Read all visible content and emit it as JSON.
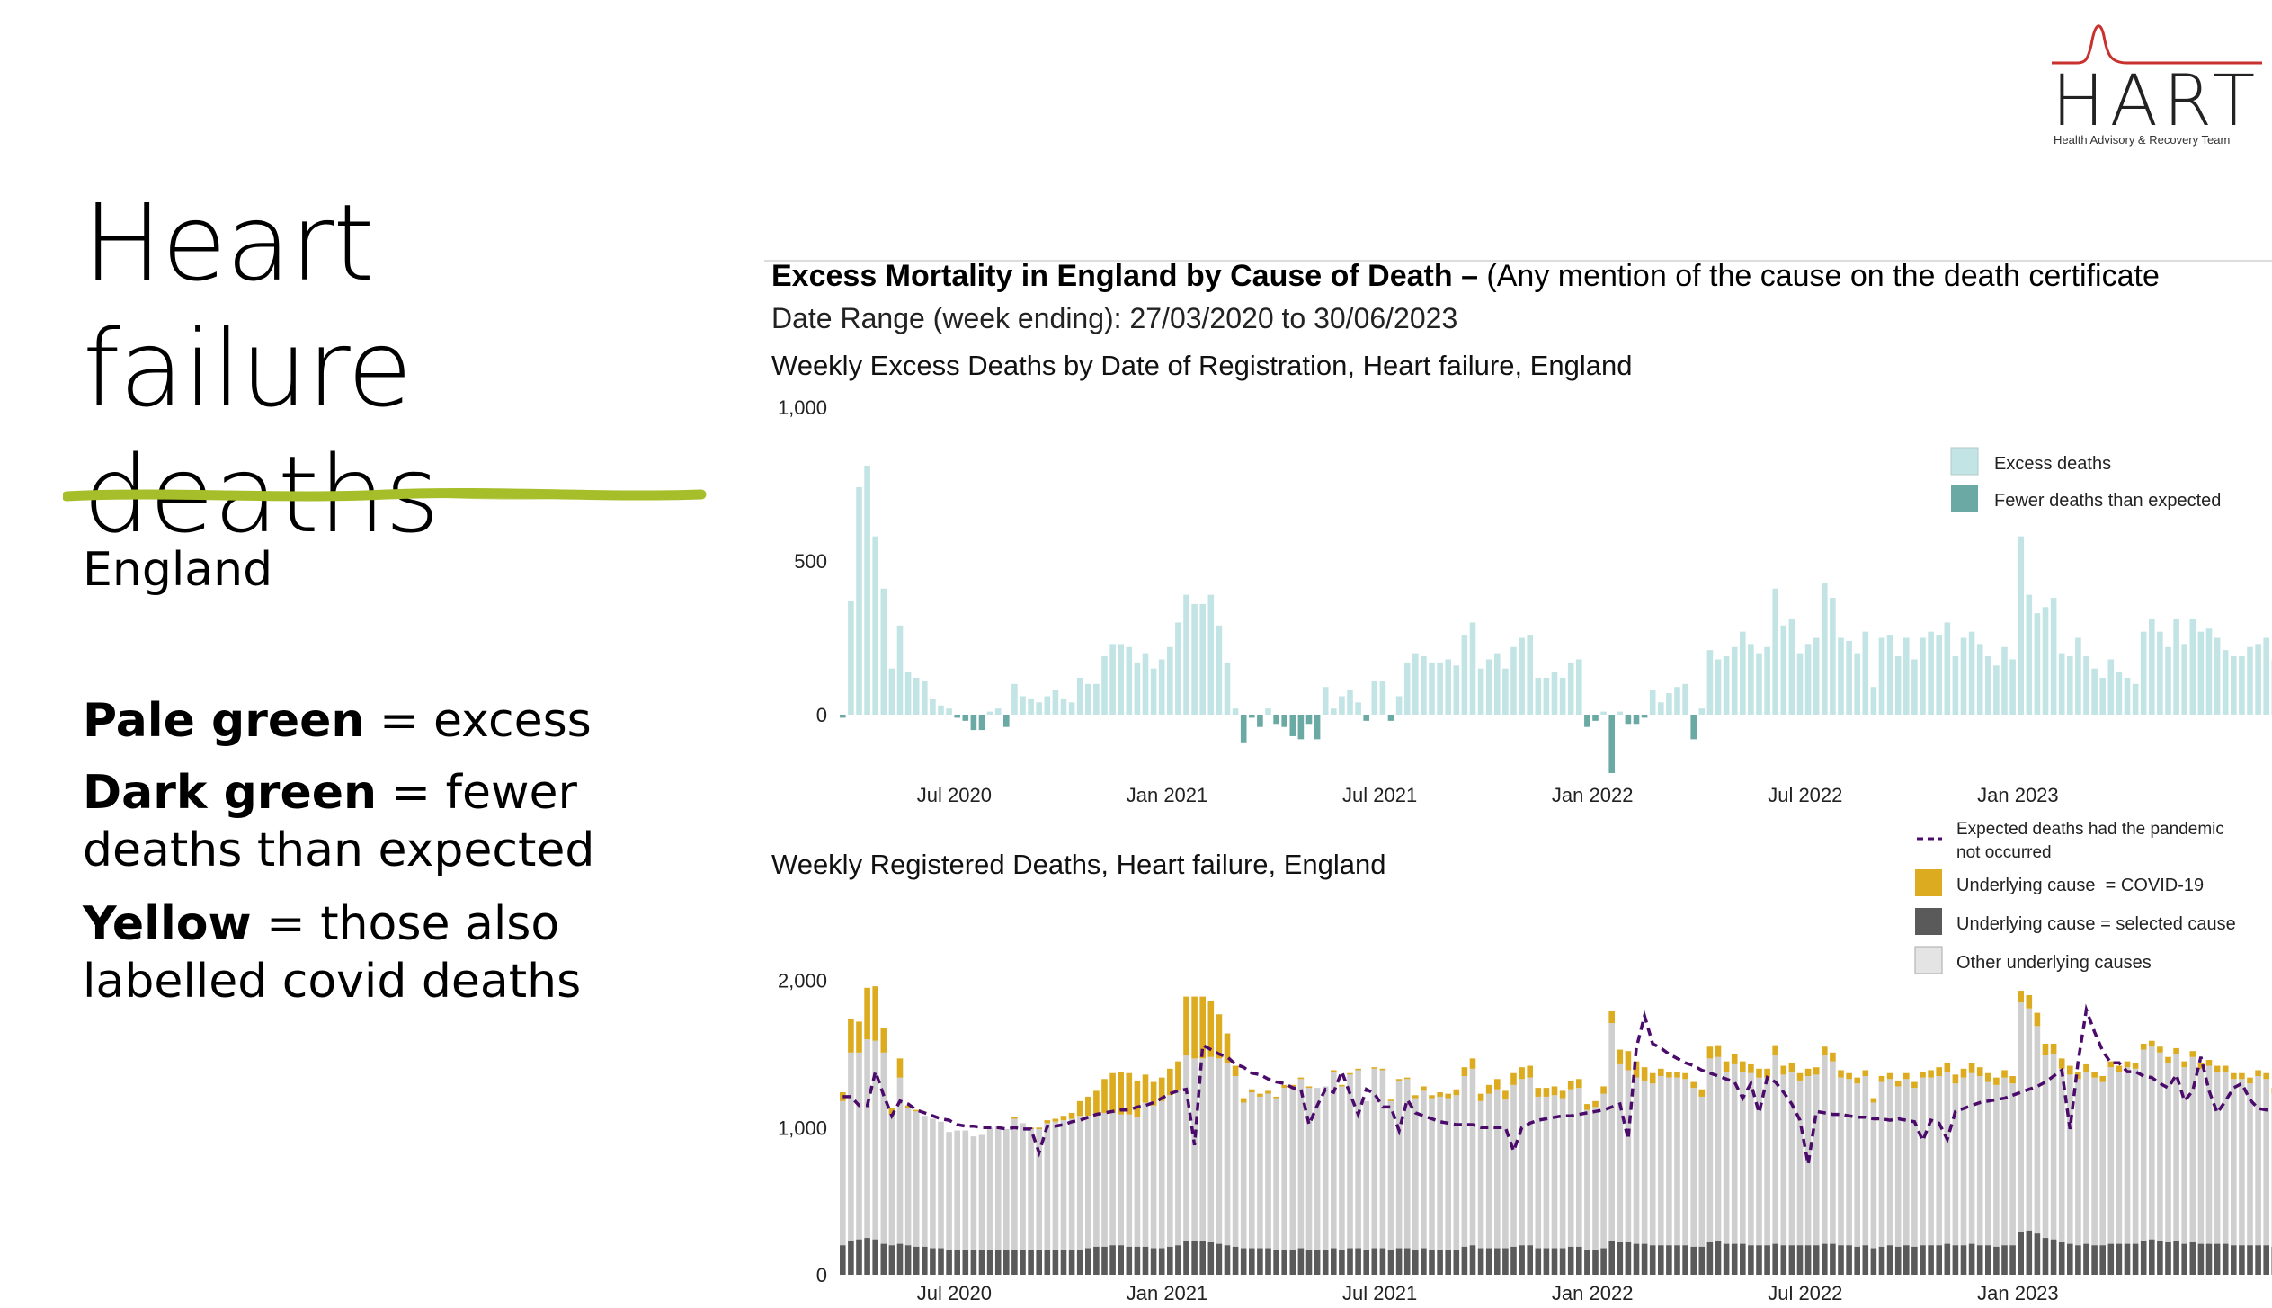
{
  "slide": {
    "title": "Heart failure deaths",
    "region": "England",
    "legend_notes": [
      {
        "bold": "Pale green",
        "text": " = excess"
      },
      {
        "bold": "Dark green",
        "text": " = fewer deaths than expected"
      },
      {
        "bold": "Yellow",
        "text": " = those also labelled covid deaths"
      }
    ]
  },
  "logo": {
    "name": "HART",
    "subtitle": "Health Advisory & Recovery Team"
  },
  "colors": {
    "accent_underline": "#a6be2a",
    "excess": "#c3e4e4",
    "fewer": "#6aa9a4",
    "covid": "#dcab1f",
    "selected": "#5a5a5a",
    "other": "#cfcfcf",
    "expected": "#4b0b6b",
    "logo_red": "#c8312e"
  },
  "report": {
    "heading_bold": "Excess Mortality in England by Cause of Death –",
    "heading_rest": " (Any mention of the cause on the death certificate",
    "date_range": "Date Range (week ending): 27/03/2020 to 30/06/2023"
  },
  "chart_data": [
    {
      "type": "bar",
      "title": "Weekly Excess Deaths by Date of Registration, Heart failure, England",
      "ylim": [
        -400,
        1000
      ],
      "yticks": [
        {
          "v": 1000,
          "label": "1,000"
        },
        {
          "v": 500,
          "label": "500"
        },
        {
          "v": 0,
          "label": "0"
        }
      ],
      "xticks": [
        {
          "week": 14,
          "label": "Jul 2020"
        },
        {
          "week": 40,
          "label": "Jan 2021"
        },
        {
          "week": 66,
          "label": "Jul 2021"
        },
        {
          "week": 92,
          "label": "Jan 2022"
        },
        {
          "week": 118,
          "label": "Jul 2022"
        },
        {
          "week": 144,
          "label": "Jan 2023"
        }
      ],
      "legend": [
        "Excess deaths",
        "Fewer deaths than expected"
      ],
      "values": [
        -10,
        370,
        740,
        810,
        580,
        410,
        150,
        290,
        140,
        120,
        110,
        50,
        30,
        20,
        -10,
        -20,
        -50,
        -50,
        10,
        20,
        -40,
        100,
        60,
        50,
        40,
        60,
        80,
        50,
        40,
        120,
        100,
        100,
        190,
        230,
        230,
        220,
        170,
        200,
        150,
        180,
        220,
        300,
        390,
        360,
        360,
        390,
        290,
        170,
        20,
        -90,
        -10,
        -40,
        20,
        -30,
        -40,
        -70,
        -80,
        -30,
        -80,
        90,
        20,
        60,
        80,
        40,
        -20,
        110,
        110,
        -20,
        60,
        170,
        200,
        190,
        170,
        170,
        180,
        160,
        260,
        300,
        150,
        180,
        200,
        150,
        220,
        250,
        260,
        120,
        120,
        140,
        120,
        170,
        180,
        -40,
        -20,
        10,
        -190,
        10,
        -30,
        -30,
        -10,
        80,
        40,
        70,
        90,
        100,
        -80,
        20,
        210,
        180,
        190,
        220,
        270,
        230,
        200,
        220,
        410,
        290,
        310,
        200,
        230,
        250,
        430,
        380,
        250,
        240,
        200,
        270,
        90,
        250,
        260,
        190,
        250,
        180,
        250,
        270,
        260,
        300,
        190,
        250,
        270,
        230,
        190,
        160,
        220,
        180,
        580,
        390,
        330,
        350,
        380,
        200,
        190,
        250,
        190,
        150,
        120,
        180,
        140,
        120,
        100,
        270,
        310,
        270,
        220,
        310,
        230,
        310,
        270,
        280,
        250,
        210,
        190,
        190,
        220,
        230,
        250,
        180
      ]
    },
    {
      "type": "bar",
      "title": "Weekly Registered Deaths, Heart failure, England",
      "ylim": [
        0,
        2200
      ],
      "yticks": [
        {
          "v": 2000,
          "label": "2,000"
        },
        {
          "v": 1000,
          "label": "1,000"
        },
        {
          "v": 0,
          "label": "0"
        }
      ],
      "xticks": [
        {
          "week": 14,
          "label": "Jul 2020"
        },
        {
          "week": 40,
          "label": "Jan 2021"
        },
        {
          "week": 66,
          "label": "Jul 2021"
        },
        {
          "week": 92,
          "label": "Jan 2022"
        },
        {
          "week": 118,
          "label": "Jul 2022"
        },
        {
          "week": 144,
          "label": "Jan 2023"
        }
      ],
      "legend": [
        "Expected deaths had the pandemic not occurred",
        "Underlying cause  = COVID-19",
        "Underlying cause = selected cause",
        "Other underlying causes"
      ],
      "registered_totals": [
        1240,
        1740,
        1720,
        1950,
        1960,
        1680,
        1130,
        1470,
        1150,
        1120,
        1080,
        1060,
        1040,
        970,
        980,
        980,
        940,
        950,
        1000,
        1010,
        990,
        1070,
        1030,
        1000,
        1000,
        1050,
        1060,
        1080,
        1100,
        1180,
        1210,
        1250,
        1330,
        1370,
        1380,
        1370,
        1320,
        1360,
        1310,
        1340,
        1400,
        1450,
        1890,
        1890,
        1890,
        1860,
        1770,
        1640,
        1420,
        1200,
        1260,
        1230,
        1250,
        1210,
        1290,
        1290,
        1340,
        1280,
        1270,
        1280,
        1390,
        1290,
        1370,
        1400,
        1180,
        1410,
        1400,
        1190,
        1330,
        1340,
        1220,
        1280,
        1220,
        1240,
        1230,
        1260,
        1410,
        1470,
        1230,
        1290,
        1330,
        1250,
        1370,
        1410,
        1420,
        1270,
        1270,
        1280,
        1250,
        1320,
        1330,
        1160,
        1180,
        1280,
        1790,
        1530,
        1520,
        1450,
        1410,
        1370,
        1400,
        1380,
        1380,
        1370,
        1310,
        1260,
        1550,
        1560,
        1450,
        1500,
        1450,
        1430,
        1400,
        1400,
        1560,
        1420,
        1440,
        1370,
        1400,
        1410,
        1550,
        1510,
        1390,
        1370,
        1340,
        1390,
        1200,
        1350,
        1370,
        1320,
        1370,
        1310,
        1380,
        1390,
        1410,
        1440,
        1360,
        1400,
        1440,
        1410,
        1370,
        1340,
        1390,
        1350,
        1930,
        1900,
        1780,
        1570,
        1570,
        1470,
        1420,
        1380,
        1430,
        1380,
        1350,
        1450,
        1420,
        1450,
        1440,
        1570,
        1590,
        1550,
        1480,
        1540,
        1450,
        1520,
        1440,
        1460,
        1420,
        1420,
        1370,
        1370,
        1340,
        1390,
        1370,
        1270
      ],
      "covid": [
        60,
        230,
        210,
        350,
        370,
        170,
        40,
        130,
        20,
        10,
        0,
        0,
        0,
        0,
        0,
        0,
        0,
        0,
        0,
        0,
        0,
        10,
        0,
        10,
        10,
        20,
        20,
        30,
        40,
        100,
        130,
        170,
        230,
        270,
        290,
        280,
        250,
        190,
        160,
        160,
        180,
        200,
        400,
        420,
        420,
        380,
        300,
        200,
        70,
        30,
        20,
        20,
        20,
        10,
        20,
        10,
        10,
        10,
        0,
        0,
        10,
        10,
        10,
        10,
        0,
        10,
        10,
        10,
        10,
        10,
        20,
        30,
        20,
        30,
        30,
        40,
        60,
        70,
        50,
        60,
        70,
        60,
        80,
        80,
        80,
        60,
        60,
        60,
        50,
        60,
        60,
        40,
        40,
        50,
        80,
        100,
        130,
        110,
        90,
        70,
        50,
        40,
        40,
        40,
        40,
        50,
        80,
        80,
        70,
        70,
        70,
        60,
        60,
        60,
        70,
        60,
        60,
        50,
        50,
        50,
        60,
        60,
        50,
        40,
        40,
        40,
        30,
        40,
        40,
        40,
        40,
        40,
        40,
        50,
        60,
        60,
        60,
        60,
        70,
        60,
        60,
        50,
        50,
        50,
        80,
        90,
        90,
        80,
        70,
        70,
        60,
        50,
        50,
        40,
        40,
        40,
        40,
        40,
        40,
        40,
        40,
        40,
        40,
        40,
        40,
        40,
        40,
        40,
        40,
        40,
        40,
        40,
        40,
        40,
        40,
        40
      ],
      "selected_cause": [
        200,
        230,
        240,
        250,
        240,
        210,
        200,
        210,
        200,
        190,
        190,
        180,
        180,
        170,
        170,
        170,
        170,
        170,
        170,
        170,
        170,
        170,
        170,
        170,
        170,
        170,
        170,
        170,
        170,
        170,
        180,
        190,
        190,
        200,
        200,
        190,
        190,
        190,
        180,
        180,
        190,
        200,
        230,
        230,
        230,
        220,
        210,
        200,
        190,
        180,
        180,
        180,
        180,
        170,
        170,
        170,
        180,
        170,
        170,
        170,
        180,
        170,
        180,
        180,
        170,
        180,
        180,
        170,
        180,
        180,
        170,
        180,
        170,
        170,
        170,
        170,
        190,
        200,
        180,
        180,
        180,
        180,
        190,
        200,
        200,
        180,
        180,
        180,
        180,
        190,
        190,
        170,
        170,
        180,
        230,
        220,
        220,
        210,
        210,
        200,
        200,
        200,
        200,
        200,
        190,
        190,
        220,
        230,
        210,
        210,
        210,
        200,
        200,
        200,
        210,
        200,
        200,
        200,
        200,
        200,
        210,
        210,
        200,
        200,
        190,
        200,
        180,
        190,
        200,
        190,
        200,
        190,
        200,
        200,
        200,
        210,
        200,
        200,
        210,
        200,
        200,
        190,
        200,
        200,
        290,
        300,
        280,
        250,
        240,
        220,
        210,
        200,
        210,
        200,
        200,
        210,
        210,
        210,
        210,
        230,
        240,
        230,
        220,
        230,
        210,
        220,
        210,
        210,
        210,
        210,
        200,
        200,
        200,
        200,
        200,
        190
      ],
      "expected": [
        1210,
        1210,
        1150,
        1150,
        1380,
        1220,
        1080,
        1180,
        1160,
        1120,
        1100,
        1080,
        1060,
        1050,
        1020,
        1010,
        1010,
        1000,
        1000,
        1000,
        990,
        1000,
        990,
        990,
        830,
        1010,
        1010,
        1020,
        1040,
        1050,
        1070,
        1090,
        1100,
        1110,
        1120,
        1120,
        1140,
        1150,
        1170,
        1200,
        1230,
        1250,
        1260,
        880,
        1560,
        1530,
        1500,
        1480,
        1430,
        1410,
        1370,
        1360,
        1330,
        1310,
        1300,
        1270,
        1260,
        1020,
        1150,
        1260,
        1240,
        1380,
        1230,
        1090,
        1260,
        1230,
        1140,
        1140,
        980,
        1190,
        1100,
        1080,
        1060,
        1040,
        1030,
        1020,
        1020,
        1020,
        1000,
        1000,
        1000,
        1000,
        840,
        1000,
        1030,
        1050,
        1060,
        1070,
        1080,
        1080,
        1090,
        1100,
        1110,
        1120,
        1140,
        1160,
        920,
        1540,
        1760,
        1570,
        1540,
        1500,
        1470,
        1440,
        1420,
        1390,
        1370,
        1350,
        1330,
        1310,
        1200,
        1300,
        1100,
        1340,
        1310,
        1240,
        1160,
        1050,
        750,
        1110,
        1100,
        1090,
        1090,
        1080,
        1070,
        1070,
        1060,
        1060,
        1050,
        1060,
        1050,
        1040,
        910,
        1050,
        1030,
        920,
        1110,
        1130,
        1150,
        1170,
        1180,
        1190,
        1200,
        1220,
        1240,
        1260,
        1280,
        1310,
        1350,
        1390,
        990,
        1450,
        1800,
        1650,
        1520,
        1440,
        1440,
        1380,
        1380,
        1350,
        1340,
        1300,
        1270,
        1360,
        1180,
        1250,
        1480,
        1250,
        1100,
        1180,
        1270,
        1300,
        1190,
        1130,
        1120,
        1110,
        1100,
        1090
      ]
    }
  ]
}
